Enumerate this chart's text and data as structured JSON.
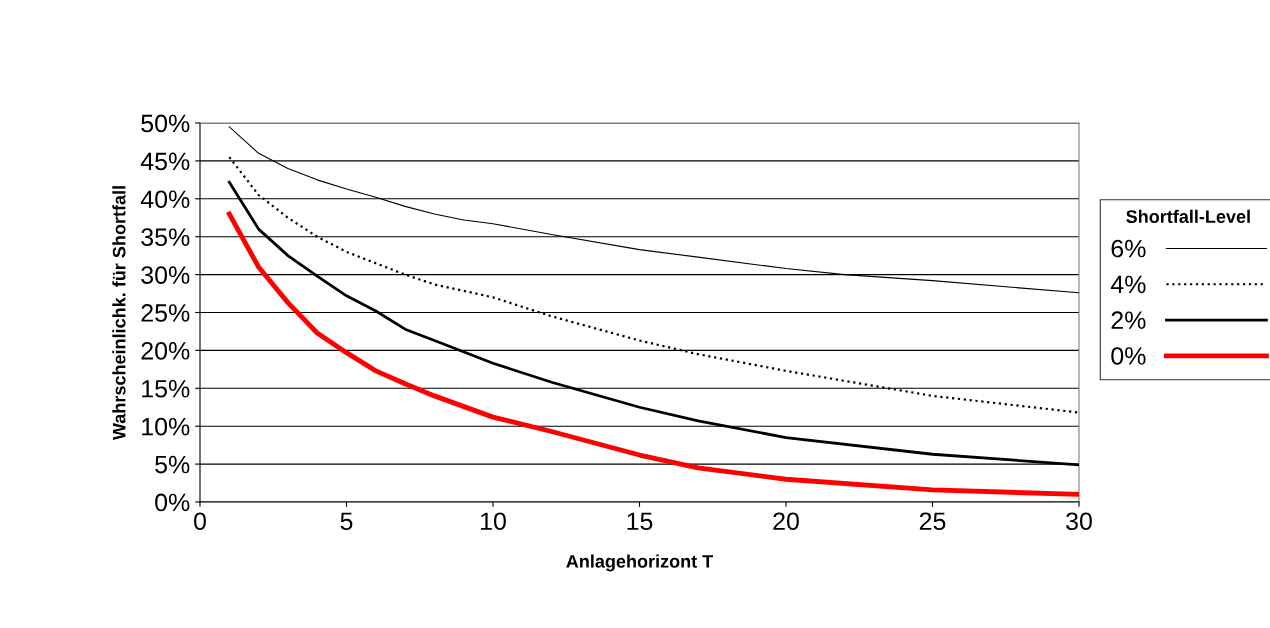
{
  "chart_data": {
    "type": "line",
    "xlabel": "Anlagehorizont T",
    "ylabel": "Wahrscheinlichk. für Shortfall",
    "legend_title": "Shortfall-Level",
    "xlim": [
      0,
      30
    ],
    "xticks": [
      0,
      5,
      10,
      15,
      20,
      25,
      30
    ],
    "ylim": [
      0,
      50
    ],
    "yticks": [
      {
        "value": 0,
        "label": "0%"
      },
      {
        "value": 5,
        "label": "5%"
      },
      {
        "value": 10,
        "label": "10%"
      },
      {
        "value": 15,
        "label": "15%"
      },
      {
        "value": 20,
        "label": "20%"
      },
      {
        "value": 25,
        "label": "25%"
      },
      {
        "value": 30,
        "label": "30%"
      },
      {
        "value": 35,
        "label": "35%"
      },
      {
        "value": 40,
        "label": "40%"
      },
      {
        "value": 45,
        "label": "45%"
      },
      {
        "value": 50,
        "label": "50%"
      }
    ],
    "grid": "y",
    "legend": "right",
    "marker": "none",
    "series": [
      {
        "name": "6%",
        "color": "#000000",
        "line_style": "solid",
        "x": [
          1,
          2,
          3,
          4,
          5,
          6,
          7,
          8,
          9,
          10,
          12,
          15,
          17,
          20,
          22,
          25,
          30
        ],
        "values": [
          49.5,
          46,
          44,
          42.5,
          41.3,
          40.2,
          39,
          38,
          37.2,
          36.7,
          35.3,
          33.3,
          32.3,
          30.8,
          30,
          29.2,
          27.6
        ]
      },
      {
        "name": "4%",
        "color": "#000000",
        "line_style": "dotted",
        "x": [
          1,
          2,
          3,
          4,
          5,
          6,
          7,
          8,
          10,
          12,
          15,
          17,
          20,
          25,
          30
        ],
        "values": [
          45.5,
          40.5,
          37.5,
          35,
          33,
          31.5,
          30,
          28.7,
          27,
          24.5,
          21.3,
          19.5,
          17.3,
          14,
          11.8
        ]
      },
      {
        "name": "2%",
        "color": "#000000",
        "line_style": "solid",
        "x": [
          1,
          2,
          3,
          4,
          5,
          6,
          7,
          8,
          10,
          12,
          15,
          17,
          20,
          25,
          30
        ],
        "values": [
          42.2,
          36,
          32.5,
          29.8,
          27.2,
          25.2,
          22.8,
          21.3,
          18.3,
          15.8,
          12.5,
          10.7,
          8.5,
          6.3,
          4.9
        ]
      },
      {
        "name": "0%",
        "color": "#ff0000",
        "line_style": "solid",
        "x": [
          1,
          2,
          3,
          4,
          5,
          6,
          7,
          8,
          10,
          12,
          15,
          17,
          20,
          25,
          30
        ],
        "values": [
          38,
          31,
          26.3,
          22.3,
          19.7,
          17.3,
          15.6,
          14,
          11.2,
          9.3,
          6.2,
          4.5,
          3,
          1.6,
          1.0
        ]
      }
    ]
  }
}
